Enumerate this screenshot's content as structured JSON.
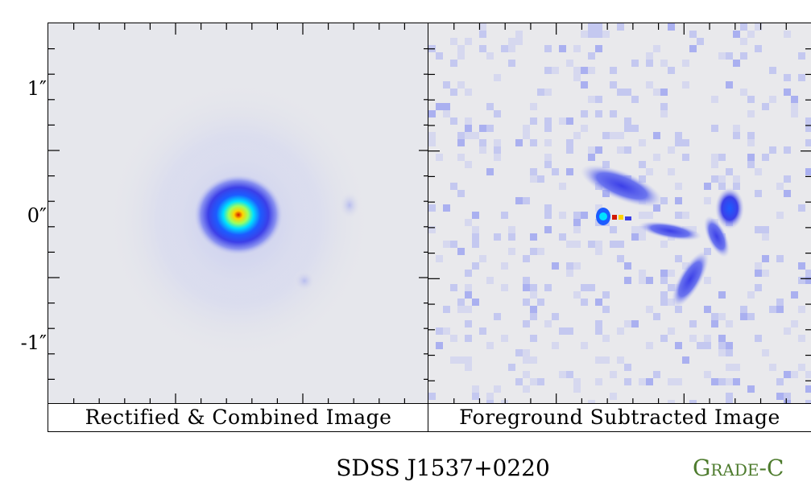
{
  "axis": {
    "y_tick_labels": [
      "1″",
      "0″",
      "-1″"
    ]
  },
  "panels": [
    {
      "caption": "Rectified & Combined Image"
    },
    {
      "caption": "Foreground Subtracted Image"
    }
  ],
  "footer": {
    "object_name": "SDSS J1537+0220",
    "grade": "Grade-C",
    "grade_color": "#4d7b2d"
  },
  "colormap": [
    "#e8e8ea",
    "#c9cdf0",
    "#8a92f0",
    "#3b3fe8",
    "#1c5cff",
    "#00e0ff",
    "#ffd400",
    "#d21a00"
  ]
}
